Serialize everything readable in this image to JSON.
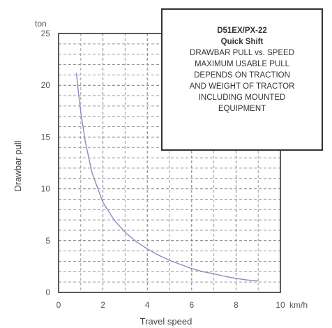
{
  "chart_data": {
    "type": "line",
    "title": "",
    "xlabel": "Travel speed",
    "ylabel": "Drawbar pull",
    "y_unit": "ton",
    "x_unit": "km/h",
    "xlim": [
      0,
      10
    ],
    "ylim": [
      0,
      25
    ],
    "x_ticks": [
      0,
      2,
      4,
      6,
      8,
      10
    ],
    "y_ticks": [
      0,
      5,
      10,
      15,
      20,
      25
    ],
    "grid": true,
    "series": [
      {
        "x": [
          0.8,
          0.9,
          1.0,
          1.2,
          1.5,
          2.0,
          2.5,
          3.0,
          3.5,
          4.0,
          4.5,
          5.0,
          5.5,
          6.0,
          6.5,
          7.0,
          7.5,
          8.0,
          8.5,
          9.0
        ],
        "y": [
          21.2,
          19.2,
          17.4,
          14.6,
          11.6,
          8.7,
          7.0,
          5.8,
          4.9,
          4.2,
          3.6,
          3.1,
          2.7,
          2.3,
          2.0,
          1.8,
          1.55,
          1.35,
          1.2,
          1.1
        ]
      }
    ],
    "annotation": {
      "title": "D51EX/PX-22",
      "subtitle": "Quick Shift",
      "lines": [
        "DRAWBAR PULL vs. SPEED",
        "MAXIMUM USABLE PULL",
        "DEPENDS ON TRACTION",
        "AND WEIGHT OF TRACTOR",
        "INCLUDING MOUNTED",
        "EQUIPMENT"
      ]
    }
  }
}
